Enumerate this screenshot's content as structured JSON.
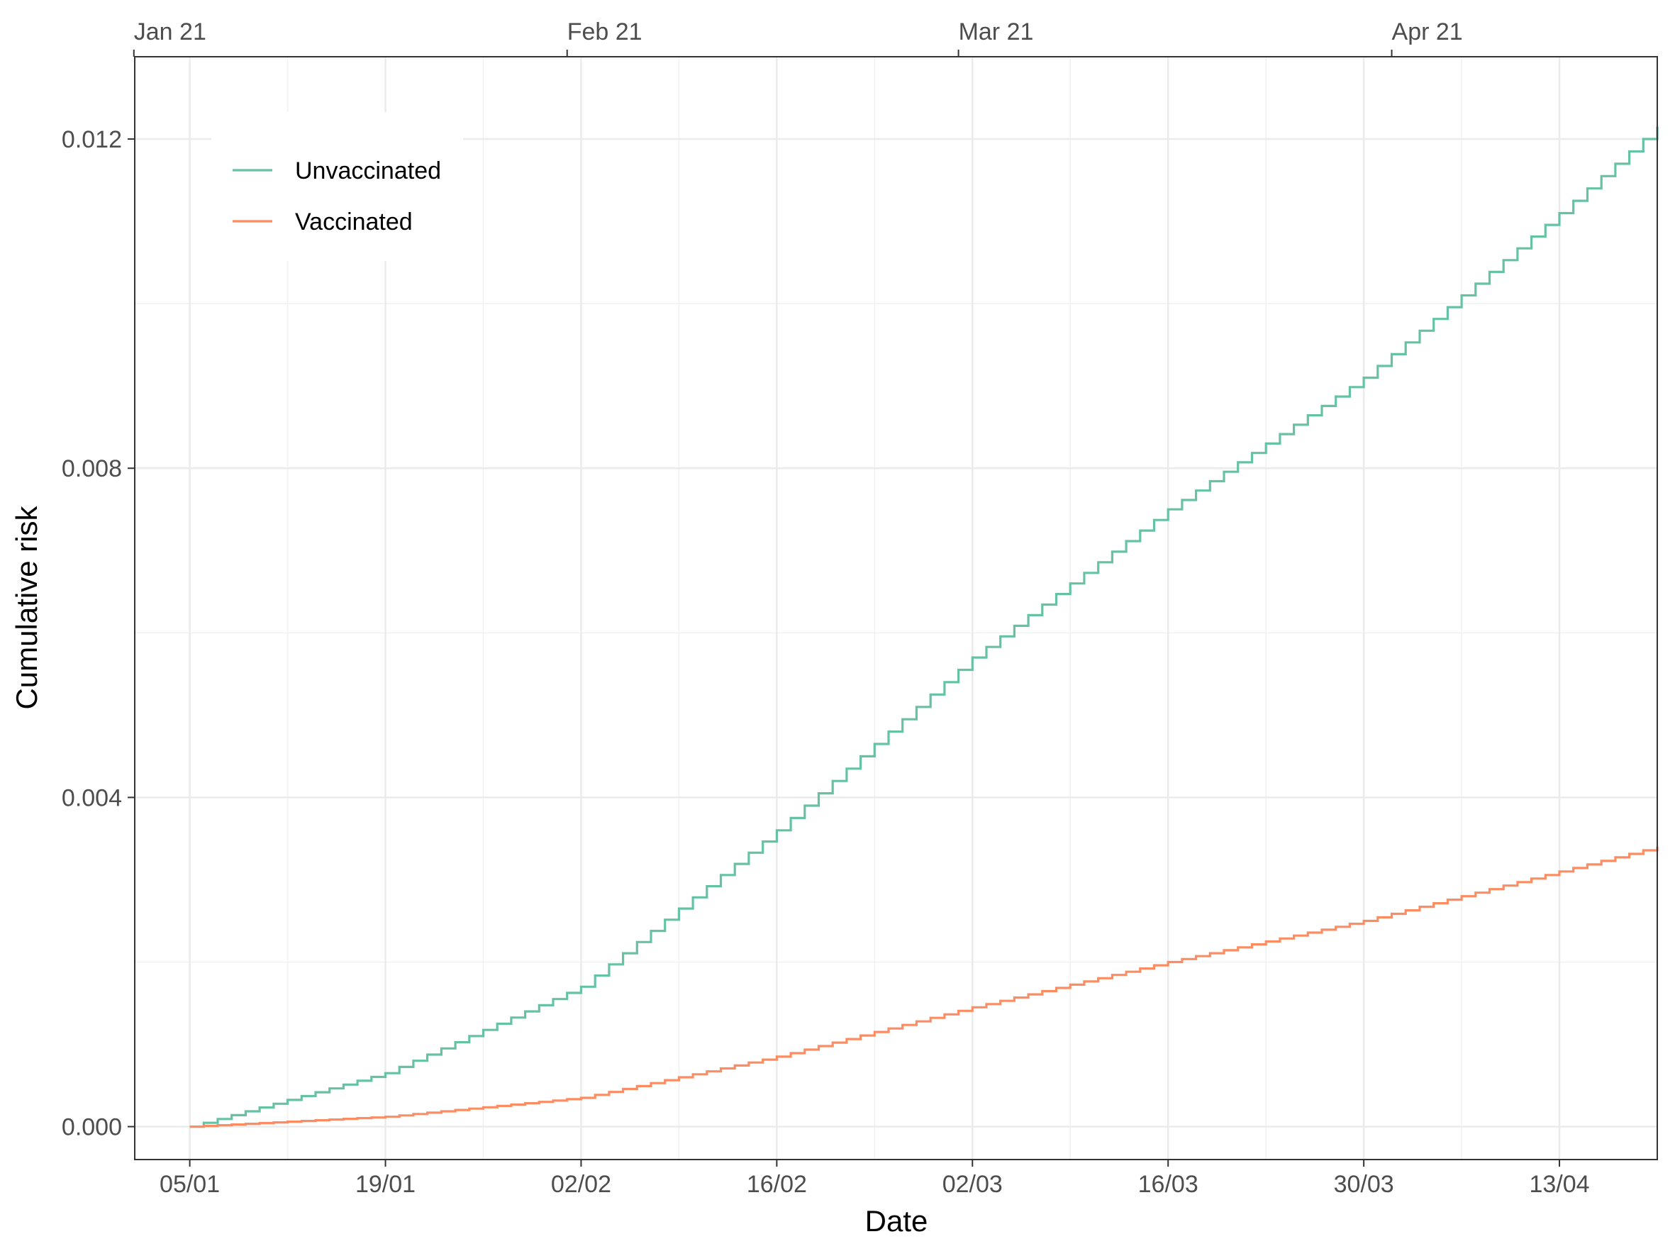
{
  "chart_data": {
    "type": "line",
    "step": true,
    "xlabel": "Date",
    "ylabel": "Cumulative risk",
    "x_range": [
      "2021-01-05",
      "2021-04-20"
    ],
    "ylim": [
      -0.0004,
      0.013
    ],
    "x_ticks": [
      {
        "date": "2021-01-05",
        "label": "05/01"
      },
      {
        "date": "2021-01-19",
        "label": "19/01"
      },
      {
        "date": "2021-02-02",
        "label": "02/02"
      },
      {
        "date": "2021-02-16",
        "label": "16/02"
      },
      {
        "date": "2021-03-02",
        "label": "02/03"
      },
      {
        "date": "2021-03-16",
        "label": "16/03"
      },
      {
        "date": "2021-03-30",
        "label": "30/03"
      },
      {
        "date": "2021-04-13",
        "label": "13/04"
      }
    ],
    "top_ticks": [
      {
        "date": "2021-01-01",
        "label": "Jan 21"
      },
      {
        "date": "2021-02-01",
        "label": "Feb 21"
      },
      {
        "date": "2021-03-01",
        "label": "Mar 21"
      },
      {
        "date": "2021-04-01",
        "label": "Apr 21"
      }
    ],
    "y_ticks": [
      {
        "value": 0.0,
        "label": "0.000"
      },
      {
        "value": 0.004,
        "label": "0.004"
      },
      {
        "value": 0.008,
        "label": "0.008"
      },
      {
        "value": 0.012,
        "label": "0.012"
      }
    ],
    "grid": true,
    "legend_position": "top-left",
    "series": [
      {
        "name": "Unvaccinated",
        "color": "#66c2a5",
        "points": [
          [
            "2021-01-05",
            0.0
          ],
          [
            "2021-01-19",
            0.00065
          ],
          [
            "2021-02-02",
            0.0017
          ],
          [
            "2021-02-16",
            0.0036
          ],
          [
            "2021-03-02",
            0.0057
          ],
          [
            "2021-03-16",
            0.0075
          ],
          [
            "2021-03-30",
            0.0091
          ],
          [
            "2021-04-13",
            0.0111
          ],
          [
            "2021-04-20",
            0.01215
          ]
        ]
      },
      {
        "name": "Vaccinated",
        "color": "#fc8d62",
        "points": [
          [
            "2021-01-05",
            0.0
          ],
          [
            "2021-01-19",
            0.00012
          ],
          [
            "2021-02-02",
            0.00035
          ],
          [
            "2021-02-16",
            0.00085
          ],
          [
            "2021-03-02",
            0.00145
          ],
          [
            "2021-03-16",
            0.002
          ],
          [
            "2021-03-30",
            0.0025
          ],
          [
            "2021-04-13",
            0.0031
          ],
          [
            "2021-04-20",
            0.0034
          ]
        ]
      }
    ]
  }
}
